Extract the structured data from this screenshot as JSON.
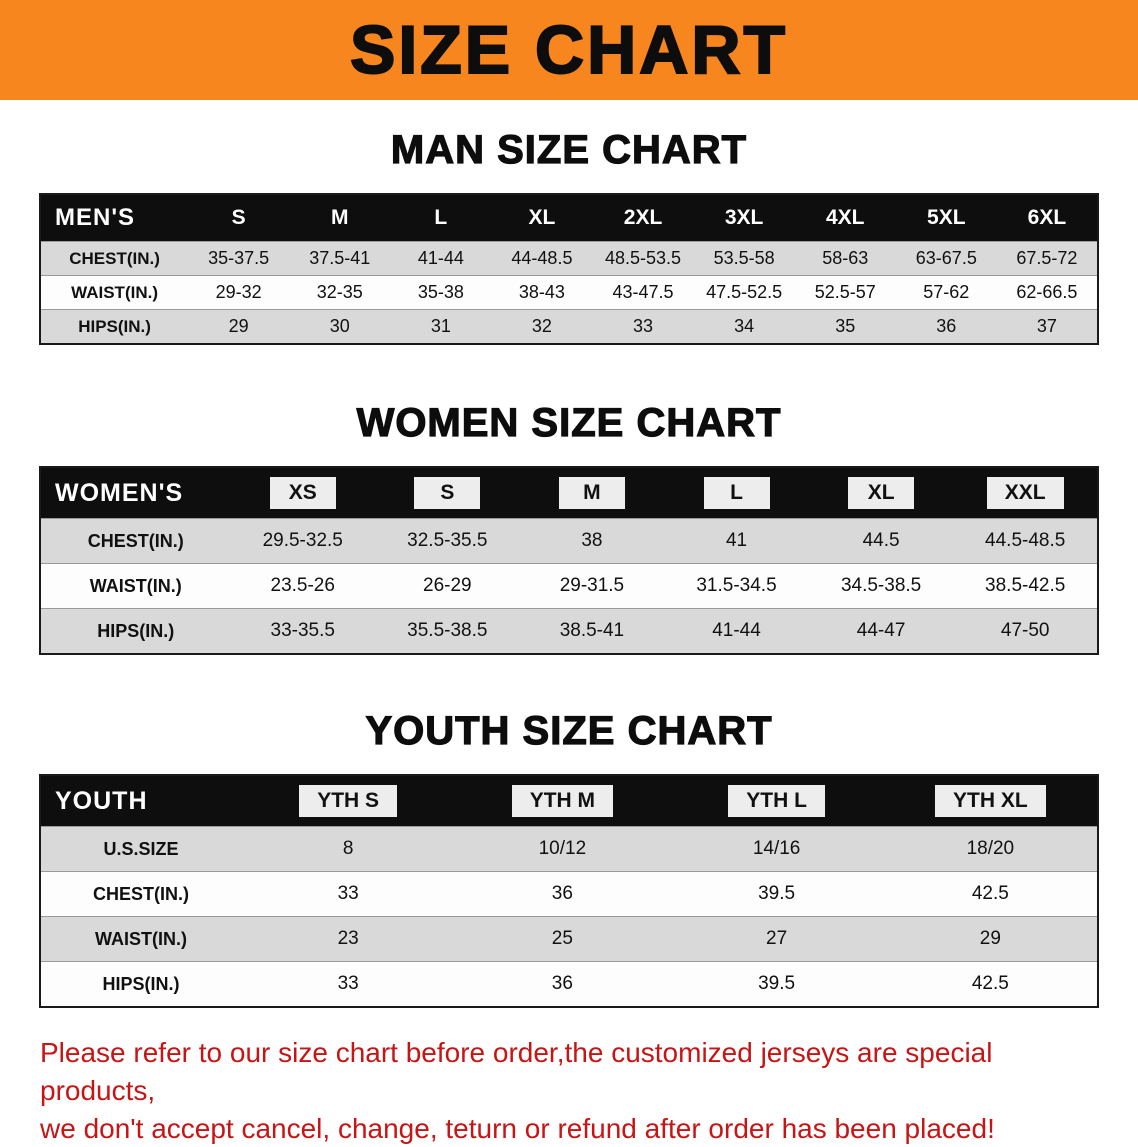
{
  "banner": {
    "title": "SIZE CHART",
    "bg_color": "#F6861D",
    "text_color": "#0D0D0D"
  },
  "sections": [
    {
      "heading": "MAN SIZE CHART",
      "table": {
        "label": "MEN'S",
        "sizes": [
          "S",
          "M",
          "L",
          "XL",
          "2XL",
          "3XL",
          "4XL",
          "5XL",
          "6XL"
        ],
        "rows": [
          {
            "label": "CHEST(IN.)",
            "values": [
              "35-37.5",
              "37.5-41",
              "41-44",
              "44-48.5",
              "48.5-53.5",
              "53.5-58",
              "58-63",
              "63-67.5",
              "67.5-72"
            ]
          },
          {
            "label": "WAIST(IN.)",
            "values": [
              "29-32",
              "32-35",
              "35-38",
              "38-43",
              "43-47.5",
              "47.5-52.5",
              "52.5-57",
              "57-62",
              "62-66.5"
            ]
          },
          {
            "label": "HIPS(IN.)",
            "values": [
              "29",
              "30",
              "31",
              "32",
              "33",
              "34",
              "35",
              "36",
              "37"
            ]
          }
        ]
      }
    },
    {
      "heading": "WOMEN SIZE CHART",
      "table": {
        "label": "WOMEN'S",
        "sizes": [
          "XS",
          "S",
          "M",
          "L",
          "XL",
          "XXL"
        ],
        "rows": [
          {
            "label": "CHEST(IN.)",
            "values": [
              "29.5-32.5",
              "32.5-35.5",
              "38",
              "41",
              "44.5",
              "44.5-48.5"
            ]
          },
          {
            "label": "WAIST(IN.)",
            "values": [
              "23.5-26",
              "26-29",
              "29-31.5",
              "31.5-34.5",
              "34.5-38.5",
              "38.5-42.5"
            ]
          },
          {
            "label": "HIPS(IN.)",
            "values": [
              "33-35.5",
              "35.5-38.5",
              "38.5-41",
              "41-44",
              "44-47",
              "47-50"
            ]
          }
        ]
      }
    },
    {
      "heading": "YOUTH SIZE CHART",
      "table": {
        "label": "YOUTH",
        "sizes": [
          "YTH S",
          "YTH M",
          "YTH L",
          "YTH XL"
        ],
        "rows": [
          {
            "label": "U.S.SIZE",
            "values": [
              "8",
              "10/12",
              "14/16",
              "18/20"
            ]
          },
          {
            "label": "CHEST(IN.)",
            "values": [
              "33",
              "36",
              "39.5",
              "42.5"
            ]
          },
          {
            "label": "WAIST(IN.)",
            "values": [
              "23",
              "25",
              "27",
              "29"
            ]
          },
          {
            "label": "HIPS(IN.)",
            "values": [
              "33",
              "36",
              "39.5",
              "42.5"
            ]
          }
        ]
      }
    }
  ],
  "disclaimer": {
    "line1": "Please refer to our size chart before order,the customized jerseys are special products,",
    "line2": "we don't accept cancel, change, teturn or refund after order has been placed!",
    "color": "#C81414"
  },
  "colors": {
    "accent_orange": "#F6861D",
    "header_black": "#0E0E0E",
    "row_stripe_gray": "#D9D9D9",
    "row_white": "#FDFDFD",
    "disclaimer_red": "#C81414"
  }
}
